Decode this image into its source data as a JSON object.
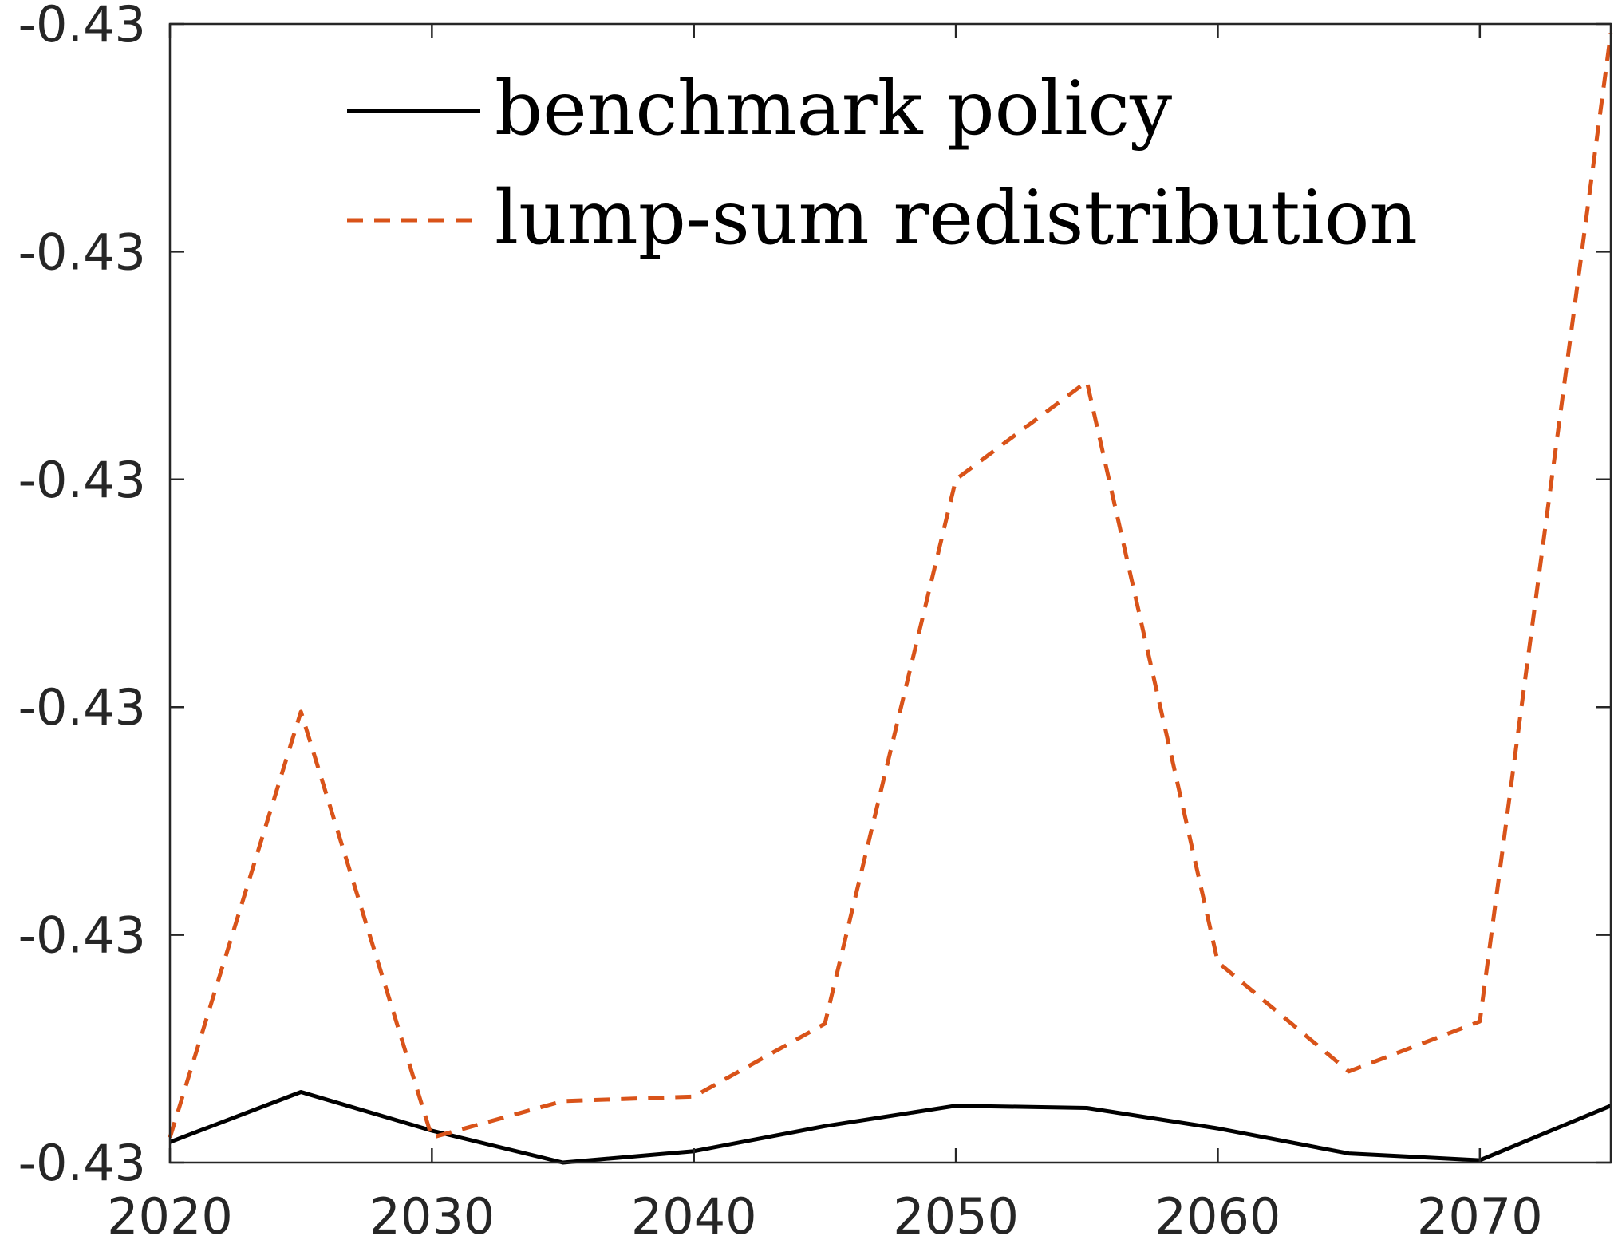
{
  "chart_data": {
    "type": "line",
    "title": "",
    "xlabel": "",
    "ylabel": "",
    "x": [
      2020,
      2025,
      2030,
      2035,
      2040,
      2045,
      2050,
      2055,
      2060,
      2065,
      2070,
      2075
    ],
    "xlim": [
      2020,
      2075
    ],
    "x_ticks": [
      2020,
      2030,
      2040,
      2050,
      2060,
      2070
    ],
    "x_tick_labels": [
      "2020",
      "2030",
      "2040",
      "2050",
      "2060",
      "2070"
    ],
    "ylim": [
      0,
      5
    ],
    "y_ticks": [
      0,
      1,
      2,
      3,
      4,
      5
    ],
    "y_tick_labels": [
      "-0.43",
      "-0.43",
      "-0.43",
      "-0.43",
      "-0.43",
      "-0.43"
    ],
    "y_note": "y tick labels are all printed as -0.43; values are relative positions in tick-interval units above the bottom tick",
    "grid": false,
    "legend_position": "top",
    "series": [
      {
        "name": "benchmark policy",
        "color": "#000000",
        "line_style": "solid",
        "values": [
          0.09,
          0.31,
          0.14,
          0.0,
          0.05,
          0.16,
          0.25,
          0.24,
          0.15,
          0.04,
          0.01,
          0.25
        ]
      },
      {
        "name": "lump-sum redistribution",
        "color": "#D95319",
        "line_style": "dashed",
        "values": [
          0.11,
          1.98,
          0.11,
          0.27,
          0.29,
          0.61,
          3.0,
          3.43,
          0.88,
          0.4,
          0.62,
          4.96
        ]
      }
    ]
  }
}
